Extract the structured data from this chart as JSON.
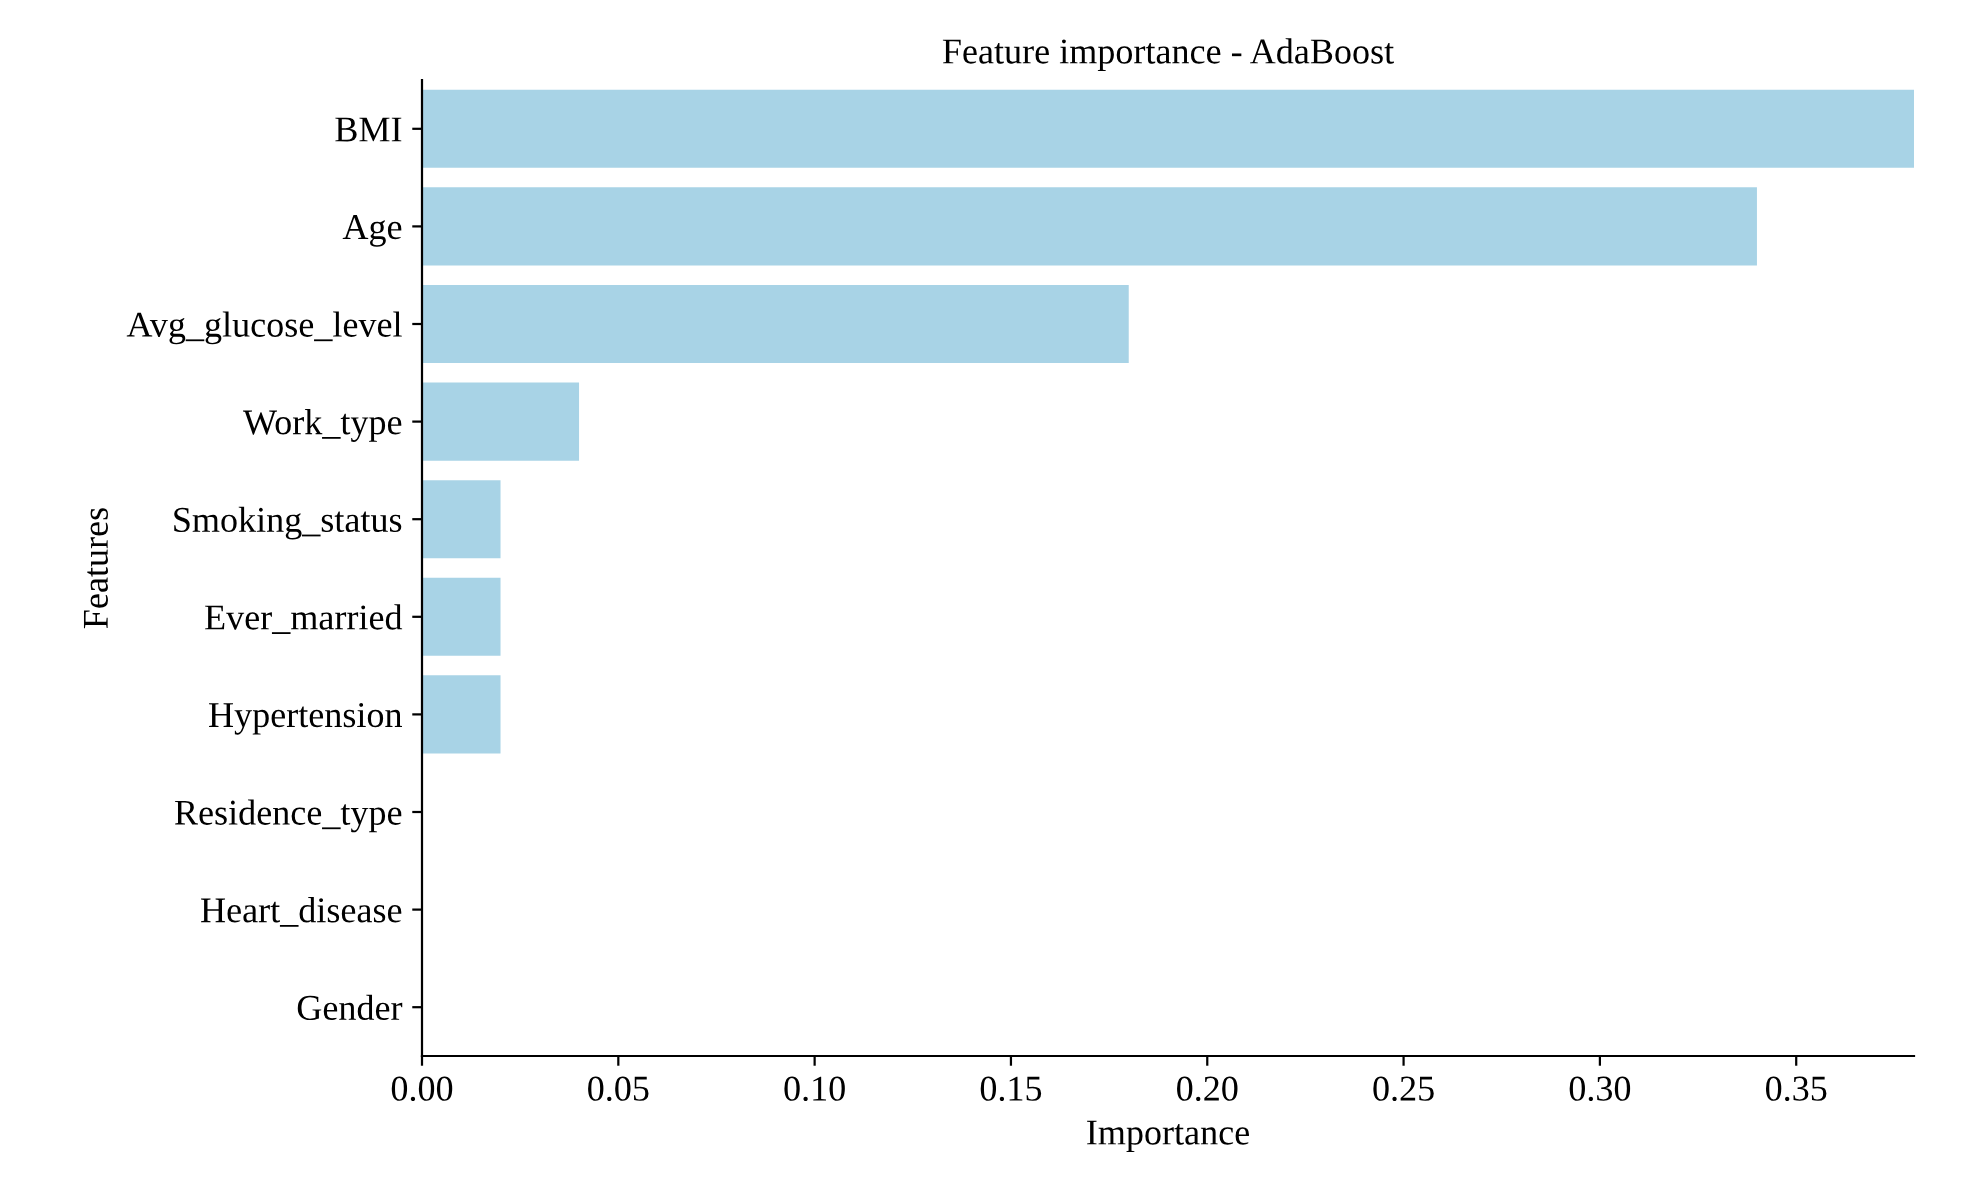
{
  "chart_data": {
    "type": "bar",
    "orientation": "horizontal",
    "title": "Feature importance - AdaBoost",
    "xlabel": "Importance",
    "ylabel": "Features",
    "categories": [
      "BMI",
      "Age",
      "Avg_glucose_level",
      "Work_type",
      "Smoking_status",
      "Ever_married",
      "Hypertension",
      "Residence_type",
      "Heart_disease",
      "Gender"
    ],
    "values": [
      0.38,
      0.34,
      0.18,
      0.04,
      0.02,
      0.02,
      0.02,
      0,
      0,
      0
    ],
    "color": "#a8d3e6",
    "xlim": [
      0,
      0.38
    ],
    "xticks": [
      {
        "value": 0,
        "label": "0.00"
      },
      {
        "value": 0.05,
        "label": "0.05"
      },
      {
        "value": 0.1,
        "label": "0.10"
      },
      {
        "value": 0.15,
        "label": "0.15"
      },
      {
        "value": 0.2,
        "label": "0.20"
      },
      {
        "value": 0.25,
        "label": "0.25"
      },
      {
        "value": 0.3,
        "label": "0.30"
      },
      {
        "value": 0.35,
        "label": "0.35"
      }
    ],
    "grid": false,
    "legend": false
  }
}
